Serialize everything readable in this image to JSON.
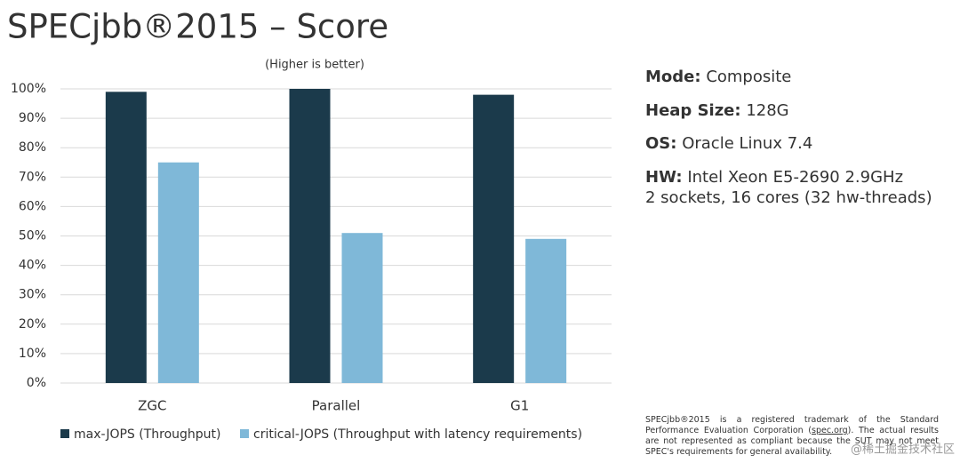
{
  "chart_data": {
    "type": "bar",
    "title": "SPECjbb®2015 – Score",
    "subtitle": "(Higher is better)",
    "categories": [
      "ZGC",
      "Parallel",
      "G1"
    ],
    "series": [
      {
        "name": "max-JOPS (Throughput)",
        "color": "#1b3a4b",
        "values": [
          99,
          100,
          98
        ]
      },
      {
        "name": "critical-JOPS (Throughput with latency requirements)",
        "color": "#7fb8d8",
        "values": [
          75,
          51,
          49
        ]
      }
    ],
    "ylim": [
      0,
      100
    ],
    "yticks": [
      {
        "value": 0,
        "label": "0%"
      },
      {
        "value": 10,
        "label": "10%"
      },
      {
        "value": 20,
        "label": "20%"
      },
      {
        "value": 30,
        "label": "30%"
      },
      {
        "value": 40,
        "label": "40%"
      },
      {
        "value": 50,
        "label": "50%"
      },
      {
        "value": 60,
        "label": "60%"
      },
      {
        "value": 70,
        "label": "70%"
      },
      {
        "value": 80,
        "label": "80%"
      },
      {
        "value": 90,
        "label": "90%"
      },
      {
        "value": 100,
        "label": "100%"
      }
    ],
    "grid": true,
    "legend": "bottom"
  },
  "slide": {
    "specs": [
      {
        "label": "Mode:",
        "value": "Composite"
      },
      {
        "label": "Heap Size:",
        "value": "128G"
      },
      {
        "label": "OS:",
        "value": "Oracle Linux 7.4"
      },
      {
        "label": "HW:",
        "value": "Intel Xeon E5-2690 2.9GHz",
        "extra": "2 sockets, 16 cores (32 hw-threads)"
      }
    ],
    "footnote": {
      "before": "SPECjbb®2015 is a registered trademark of the Standard Performance Evaluation Corporation (",
      "link": "spec.org",
      "after": "). The actual results are not represented as compliant because the SUT may not meet SPEC's requirements for general availability."
    },
    "watermark": "@稀土掘金技术社区"
  }
}
